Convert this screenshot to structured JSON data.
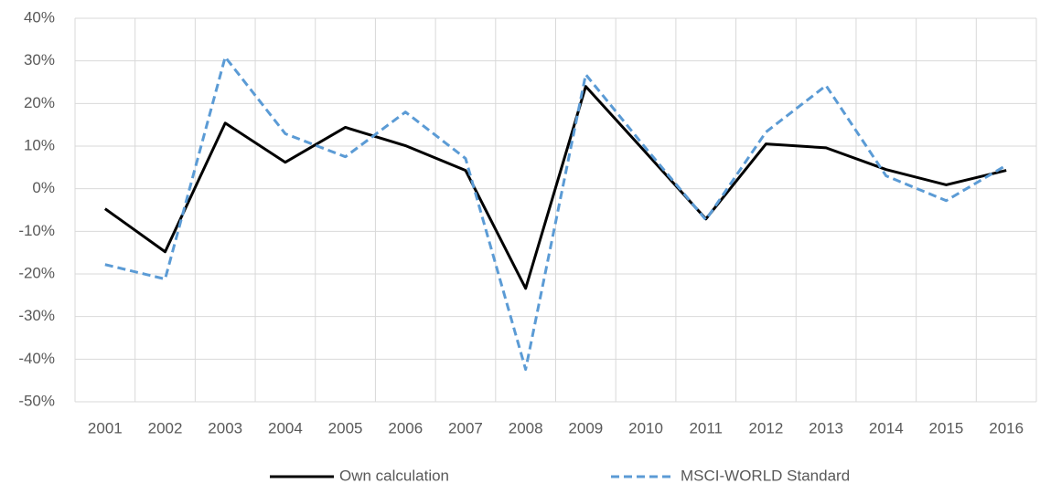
{
  "chart_data": {
    "type": "line",
    "categories": [
      "2001",
      "2002",
      "2003",
      "2004",
      "2005",
      "2006",
      "2007",
      "2008",
      "2009",
      "2010",
      "2011",
      "2012",
      "2013",
      "2014",
      "2015",
      "2016"
    ],
    "series": [
      {
        "name": "Own calculation",
        "color": "#000000",
        "dash": false,
        "values": [
          -4.7,
          -14.8,
          15.4,
          6.2,
          14.4,
          10.1,
          4.3,
          -23.4,
          24.0,
          8.5,
          -7.1,
          10.5,
          9.6,
          4.5,
          0.9,
          4.3
        ]
      },
      {
        "name": "MSCI-WORLD Standard",
        "color": "#5b9bd5",
        "dash": true,
        "values": [
          -17.8,
          -21.2,
          30.9,
          12.9,
          7.5,
          18.0,
          7.1,
          -42.4,
          26.8,
          9.5,
          -7.3,
          13.3,
          24.2,
          3.0,
          -2.8,
          5.5
        ]
      }
    ],
    "ylim": [
      -50,
      40
    ],
    "yticks": [
      {
        "value": -50,
        "label": "-50%"
      },
      {
        "value": -40,
        "label": "-40%"
      },
      {
        "value": -30,
        "label": "-30%"
      },
      {
        "value": -20,
        "label": "-20%"
      },
      {
        "value": -10,
        "label": "-10%"
      },
      {
        "value": 0,
        "label": "0%"
      },
      {
        "value": 10,
        "label": "10%"
      },
      {
        "value": 20,
        "label": "20%"
      },
      {
        "value": 30,
        "label": "30%"
      },
      {
        "value": 40,
        "label": "40%"
      }
    ],
    "grid": true,
    "legend": "bottom"
  }
}
